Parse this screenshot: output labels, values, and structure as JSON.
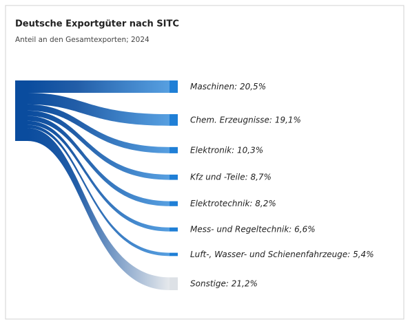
{
  "chart_data": {
    "type": "sankey",
    "title": "Deutsche Exportgüter nach SITC",
    "subtitle": "Anteil an den Gesamtexporten; 2024",
    "categories": [
      "Maschinen:",
      "Chem. Erzeugnisse:",
      "Elektronik:",
      "Kfz und -Teile:",
      "Elektrotechnik:",
      "Mess- und Regeltechnik:",
      "Luft-, Wasser- und Schienenfahrzeuge:",
      "Sonstige:"
    ],
    "values": [
      20.5,
      19.1,
      10.3,
      8.7,
      8.2,
      6.6,
      5.4,
      21.2
    ],
    "value_labels": [
      "20,5%",
      "19,1%",
      "10,3%",
      "8,7%",
      "8,2%",
      "6,6%",
      "5,4%",
      "21,2%"
    ],
    "colors": [
      "#1f7fd6",
      "#1f7fd6",
      "#1f7fd6",
      "#1f7fd6",
      "#1f7fd6",
      "#1f7fd6",
      "#1f7fd6",
      "#dde1e6"
    ],
    "source_color": "#0a4c9e"
  }
}
